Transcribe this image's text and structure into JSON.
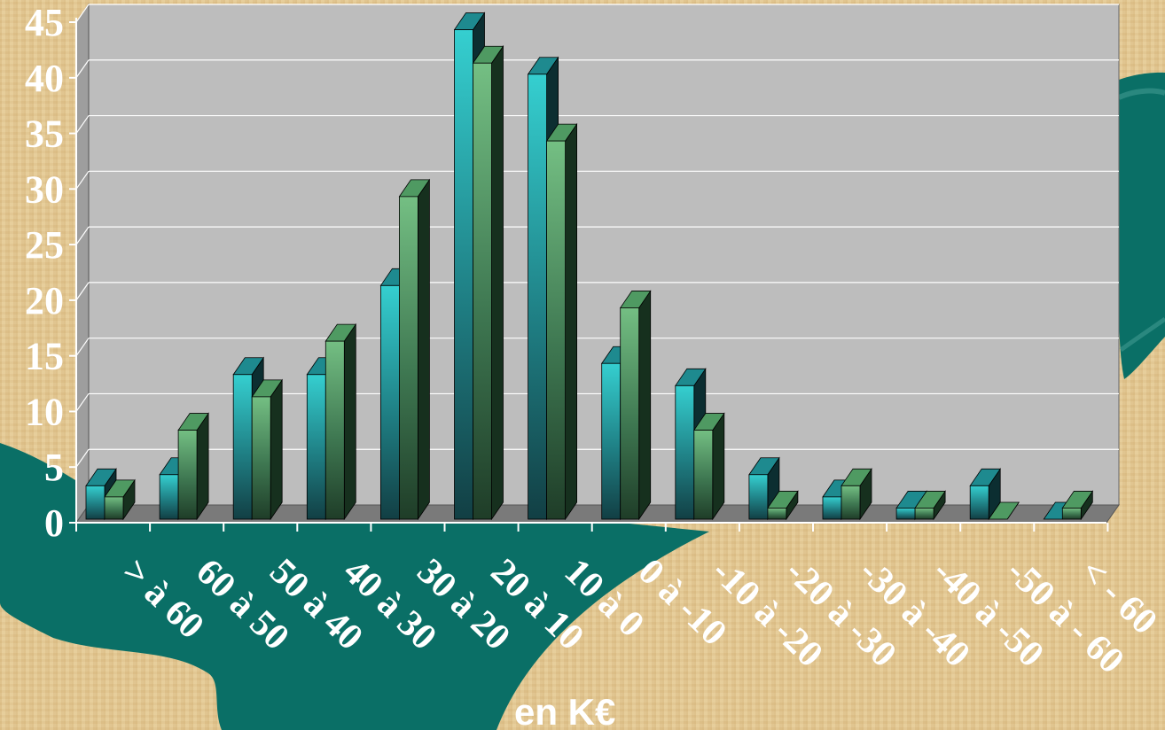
{
  "chart_data": {
    "type": "bar",
    "categories": [
      "> à 60",
      "60 à 50",
      "50 à 40",
      "40 à 30",
      "30 à 20",
      "20 à 10",
      "10 à 0",
      "0 à -10",
      "-10 à -20",
      "-20 à -30",
      "-30 à -40",
      "-40 à -50",
      "-50 à - 60",
      "< - 60"
    ],
    "series": [
      {
        "values": [
          3,
          4,
          13,
          13,
          21,
          44,
          40,
          14,
          12,
          4,
          2,
          1,
          3,
          0
        ]
      },
      {
        "values": [
          2,
          8,
          11,
          16,
          29,
          41,
          34,
          19,
          8,
          1,
          3,
          1,
          0,
          1
        ]
      }
    ],
    "yticks": [
      "0",
      "5",
      "10",
      "15",
      "20",
      "25",
      "30",
      "35",
      "40",
      "45"
    ],
    "ylim": [
      0,
      45
    ],
    "xlabel": "en K€",
    "title": "",
    "ylabel": "",
    "grid": true,
    "style": "3d-column",
    "colors": {
      "series1": "#2ec6c8",
      "series2": "#6fb87a",
      "plot_wall": "#bdbdbd",
      "floor": "#7a7a7a",
      "gridline": "#ffffff",
      "background": "#e3c893",
      "teal_shape": "#0a6f66"
    }
  }
}
